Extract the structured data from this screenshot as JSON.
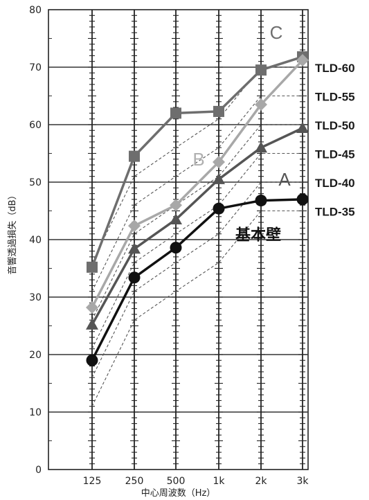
{
  "chart_data": {
    "type": "line",
    "xlabel": "中心周波数（Hz）",
    "ylabel": "音響透過損失（dB）",
    "categories": [
      "125",
      "250",
      "500",
      "1k",
      "2k",
      "3k"
    ],
    "ylim": [
      0,
      80
    ],
    "yticks": [
      0,
      10,
      20,
      30,
      40,
      50,
      60,
      70,
      80
    ],
    "grid": true,
    "series": [
      {
        "name": "C",
        "marker": "square",
        "color": "#6e6e6e",
        "values": [
          35.2,
          54.5,
          62,
          62.3,
          69.5,
          71.8
        ]
      },
      {
        "name": "B",
        "marker": "diamond",
        "color": "#a8a8a8",
        "values": [
          28.2,
          42.4,
          46,
          53.5,
          63.5,
          71.2
        ]
      },
      {
        "name": "A",
        "marker": "triangle",
        "color": "#555555",
        "values": [
          25.2,
          38.4,
          43.5,
          50.5,
          56,
          59.4
        ]
      },
      {
        "name": "基本壁",
        "marker": "circle",
        "color": "#111111",
        "values": [
          19,
          33.4,
          38.6,
          45.4,
          46.8,
          47
        ]
      }
    ],
    "reference_curves": [
      {
        "name": "TLD-60",
        "values": [
          36,
          51,
          56,
          61,
          70,
          70
        ]
      },
      {
        "name": "TLD-55",
        "values": [
          31,
          46,
          51,
          56,
          65,
          65
        ]
      },
      {
        "name": "TLD-50",
        "values": [
          26,
          41,
          46,
          51,
          60,
          60
        ]
      },
      {
        "name": "TLD-45",
        "values": [
          21,
          36,
          41,
          46,
          55,
          55
        ]
      },
      {
        "name": "TLD-40",
        "values": [
          16,
          31,
          36,
          41,
          50,
          50
        ]
      },
      {
        "name": "TLD-35",
        "values": [
          11,
          26,
          31,
          36,
          45,
          45
        ]
      }
    ],
    "reference_labels": [
      {
        "text": "TLD-60",
        "value": 70
      },
      {
        "text": "TLD-55",
        "value": 65
      },
      {
        "text": "TLD-50",
        "value": 60
      },
      {
        "text": "TLD-45",
        "value": 55
      },
      {
        "text": "TLD-40",
        "value": 50
      },
      {
        "text": "TLD-35",
        "value": 45
      }
    ],
    "annotations": [
      {
        "text": "C",
        "x": "2k",
        "y": 76,
        "color": "#6e6e6e"
      },
      {
        "text": "B",
        "x": "500",
        "y": 54,
        "color": "#b0b0b0"
      },
      {
        "text": "A",
        "x": "2k",
        "y": 50.5,
        "color": "#555555"
      },
      {
        "text": "基本壁",
        "x": "1k",
        "y": 41,
        "color": "#111111"
      }
    ]
  }
}
